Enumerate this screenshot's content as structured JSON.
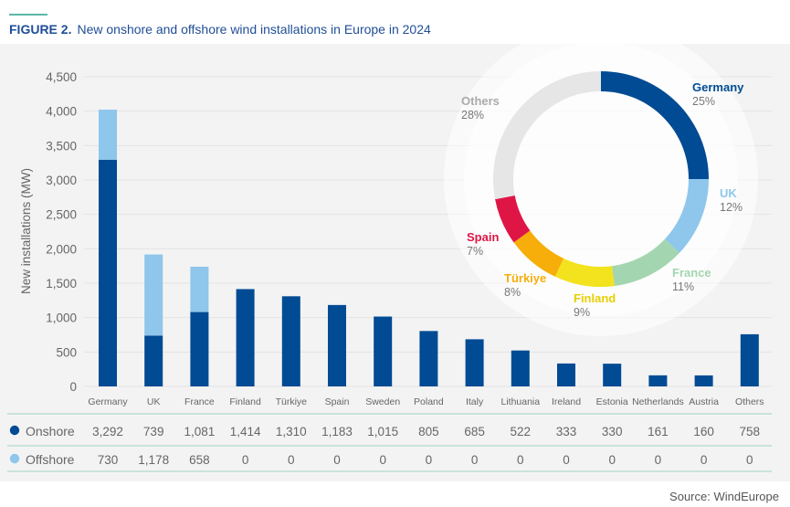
{
  "header": {
    "figure_label": "FIGURE 2.",
    "title": "New onshore and offshore wind installations in Europe in 2024"
  },
  "footer": {
    "source": "Source: WindEurope"
  },
  "colors": {
    "onshore": "#004b93",
    "offshore": "#8ec6ec",
    "title": "#1f4e96",
    "rule": "#5cb8a8"
  },
  "chart_data": [
    {
      "type": "bar",
      "stacked": true,
      "categories": [
        "Germany",
        "UK",
        "France",
        "Finland",
        "Türkiye",
        "Spain",
        "Sweden",
        "Poland",
        "Italy",
        "Lithuania",
        "Ireland",
        "Estonia",
        "Netherlands",
        "Austria",
        "Others"
      ],
      "series": [
        {
          "name": "Onshore",
          "color": "#004b93",
          "values": [
            3292,
            739,
            1081,
            1414,
            1310,
            1183,
            1015,
            805,
            685,
            522,
            333,
            330,
            161,
            160,
            758
          ]
        },
        {
          "name": "Offshore",
          "color": "#8ec6ec",
          "values": [
            730,
            1178,
            658,
            0,
            0,
            0,
            0,
            0,
            0,
            0,
            0,
            0,
            0,
            0,
            0
          ]
        }
      ],
      "table_values": {
        "onshore": [
          "3,292",
          "739",
          "1,081",
          "1,414",
          "1,310",
          "1,183",
          "1,015",
          "805",
          "685",
          "522",
          "333",
          "330",
          "161",
          "160",
          "758"
        ],
        "offshore": [
          "730",
          "1,178",
          "658",
          "0",
          "0",
          "0",
          "0",
          "0",
          "0",
          "0",
          "0",
          "0",
          "0",
          "0",
          "0"
        ]
      },
      "ylabel": "New installations (MW)",
      "ylim": [
        0,
        4500
      ],
      "yticks": [
        0,
        500,
        1000,
        1500,
        2000,
        2500,
        3000,
        3500,
        4000,
        4500
      ],
      "ytick_labels": [
        "0",
        "500",
        "1,000",
        "1,500",
        "2,000",
        "2,500",
        "3,000",
        "3,500",
        "4,000",
        "4,500"
      ],
      "grid": true,
      "legend": "table-rows-below-chart"
    },
    {
      "type": "pie",
      "donut": true,
      "slices": [
        {
          "label": "Germany",
          "pct_label": "25%",
          "value": 25,
          "color": "#004b93"
        },
        {
          "label": "UK",
          "pct_label": "12%",
          "value": 12,
          "color": "#8ec6ec"
        },
        {
          "label": "France",
          "pct_label": "11%",
          "value": 11,
          "color": "#a3d6b0"
        },
        {
          "label": "Finland",
          "pct_label": "9%",
          "value": 9,
          "color": "#f3e21e"
        },
        {
          "label": "Türkiye",
          "pct_label": "8%",
          "value": 8,
          "color": "#f7ad0a"
        },
        {
          "label": "Spain",
          "pct_label": "7%",
          "value": 7,
          "color": "#df1546"
        },
        {
          "label": "Others",
          "pct_label": "28%",
          "value": 28,
          "color": "#e6e6e6"
        }
      ]
    }
  ]
}
